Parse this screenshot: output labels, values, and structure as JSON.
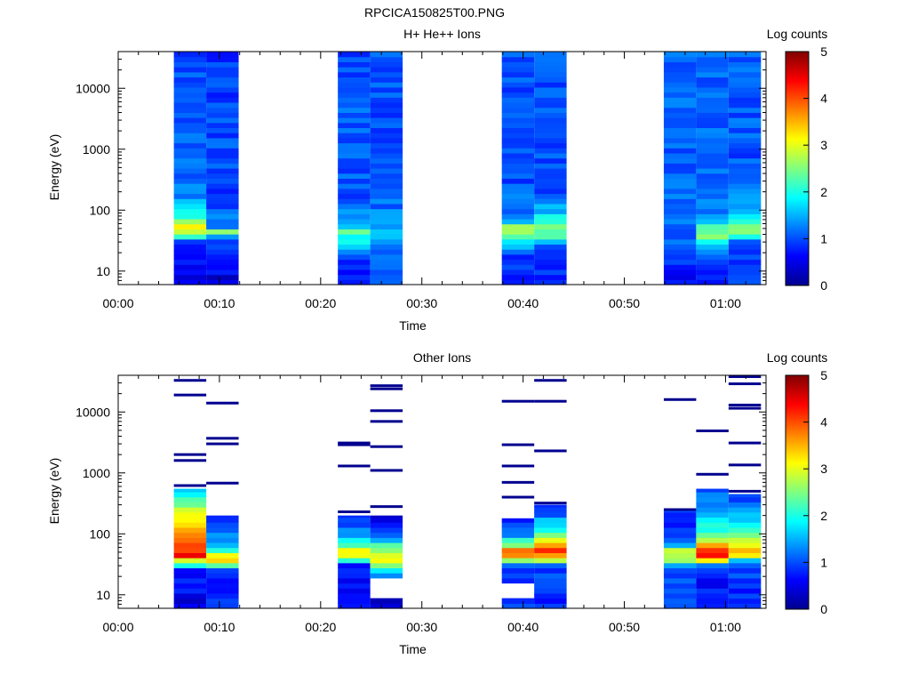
{
  "figure_title": "RPCICA150825T00.PNG",
  "chart_data": [
    {
      "type": "heatmap",
      "title": "H+ He++ Ions",
      "xlabel": "Time",
      "ylabel": "Energy (eV)",
      "y_scale": "log",
      "ylim": [
        6,
        40000
      ],
      "x_unit": "minutes",
      "xlim": [
        0,
        64
      ],
      "x_ticks": [
        {
          "value": 0,
          "label": "00:00"
        },
        {
          "value": 10,
          "label": "00:10"
        },
        {
          "value": 20,
          "label": "00:20"
        },
        {
          "value": 30,
          "label": "00:30"
        },
        {
          "value": 40,
          "label": "00:40"
        },
        {
          "value": 50,
          "label": "00:50"
        },
        {
          "value": 60,
          "label": "01:00"
        }
      ],
      "y_ticks": [
        {
          "value": 10,
          "label": "10"
        },
        {
          "value": 100,
          "label": "100"
        },
        {
          "value": 1000,
          "label": "1000"
        },
        {
          "value": 10000,
          "label": "10000"
        }
      ],
      "colorbar": {
        "label": "Log counts",
        "min": 0,
        "max": 5,
        "ticks": [
          "0",
          "1",
          "2",
          "3",
          "4",
          "5"
        ]
      },
      "columns": [
        {
          "x_start": 5.5,
          "x_end": 8.7,
          "profile": [
            [
              6,
              0.5
            ],
            [
              12,
              0.6
            ],
            [
              30,
              0.9
            ],
            [
              40,
              2.6
            ],
            [
              60,
              3.2
            ],
            [
              80,
              2.0
            ],
            [
              200,
              1.2
            ],
            [
              1000,
              1.1
            ],
            [
              40000,
              1.0
            ]
          ]
        },
        {
          "x_start": 8.7,
          "x_end": 11.9,
          "profile": [
            [
              6,
              0.4
            ],
            [
              20,
              0.8
            ],
            [
              35,
              1.2
            ],
            [
              45,
              2.5
            ],
            [
              55,
              1.3
            ],
            [
              150,
              0.9
            ],
            [
              1000,
              1.0
            ],
            [
              40000,
              0.9
            ]
          ]
        },
        {
          "x_start": 21.7,
          "x_end": 24.9,
          "profile": [
            [
              6,
              0.6
            ],
            [
              20,
              1.0
            ],
            [
              30,
              1.8
            ],
            [
              45,
              2.3
            ],
            [
              60,
              1.4
            ],
            [
              200,
              1.0
            ],
            [
              1000,
              1.1
            ],
            [
              40000,
              1.0
            ]
          ]
        },
        {
          "x_start": 24.9,
          "x_end": 28.1,
          "profile": [
            [
              6,
              1.0
            ],
            [
              20,
              1.1
            ],
            [
              40,
              1.5
            ],
            [
              60,
              1.3
            ],
            [
              300,
              1.0
            ],
            [
              40000,
              1.0
            ]
          ]
        },
        {
          "x_start": 37.9,
          "x_end": 41.1,
          "profile": [
            [
              6,
              0.6
            ],
            [
              20,
              1.0
            ],
            [
              40,
              2.4
            ],
            [
              55,
              2.6
            ],
            [
              70,
              1.3
            ],
            [
              300,
              1.0
            ],
            [
              40000,
              1.0
            ]
          ]
        },
        {
          "x_start": 41.1,
          "x_end": 44.3,
          "profile": [
            [
              6,
              0.7
            ],
            [
              25,
              1.1
            ],
            [
              40,
              2.6
            ],
            [
              60,
              2.2
            ],
            [
              90,
              1.6
            ],
            [
              200,
              1.0
            ],
            [
              40000,
              1.0
            ]
          ]
        },
        {
          "x_start": 53.9,
          "x_end": 57.1,
          "profile": [
            [
              6,
              0.6
            ],
            [
              20,
              1.0
            ],
            [
              60,
              1.2
            ],
            [
              400,
              1.1
            ],
            [
              40000,
              1.1
            ]
          ]
        },
        {
          "x_start": 57.1,
          "x_end": 60.3,
          "profile": [
            [
              6,
              0.5
            ],
            [
              25,
              1.3
            ],
            [
              40,
              2.6
            ],
            [
              55,
              2.3
            ],
            [
              80,
              1.2
            ],
            [
              500,
              1.1
            ],
            [
              40000,
              1.1
            ]
          ]
        },
        {
          "x_start": 60.3,
          "x_end": 63.5,
          "profile": [
            [
              6,
              0.9
            ],
            [
              30,
              1.0
            ],
            [
              45,
              2.7
            ],
            [
              60,
              2.3
            ],
            [
              90,
              1.6
            ],
            [
              300,
              1.0
            ],
            [
              40000,
              1.1
            ]
          ]
        }
      ]
    },
    {
      "type": "heatmap",
      "title": "Other Ions",
      "xlabel": "Time",
      "ylabel": "Energy (eV)",
      "y_scale": "log",
      "ylim": [
        6,
        40000
      ],
      "x_unit": "minutes",
      "xlim": [
        0,
        64
      ],
      "x_ticks": [
        {
          "value": 0,
          "label": "00:00"
        },
        {
          "value": 10,
          "label": "00:10"
        },
        {
          "value": 20,
          "label": "00:20"
        },
        {
          "value": 30,
          "label": "00:30"
        },
        {
          "value": 40,
          "label": "00:40"
        },
        {
          "value": 50,
          "label": "00:50"
        },
        {
          "value": 60,
          "label": "01:00"
        }
      ],
      "y_ticks": [
        {
          "value": 10,
          "label": "10"
        },
        {
          "value": 100,
          "label": "100"
        },
        {
          "value": 1000,
          "label": "1000"
        },
        {
          "value": 10000,
          "label": "10000"
        }
      ],
      "colorbar": {
        "label": "Log counts",
        "min": 0,
        "max": 5,
        "ticks": [
          "0",
          "1",
          "2",
          "3",
          "4",
          "5"
        ]
      },
      "columns": [
        {
          "x_start": 5.5,
          "x_end": 8.7,
          "fill_top": 550,
          "profile": [
            [
              6,
              0.5
            ],
            [
              25,
              0.8
            ],
            [
              32,
              2.2
            ],
            [
              45,
              4.4
            ],
            [
              60,
              4.0
            ],
            [
              100,
              3.5
            ],
            [
              200,
              3.0
            ],
            [
              400,
              2.1
            ],
            [
              550,
              1.4
            ]
          ],
          "lines": [
            33000,
            19000,
            2000,
            1600,
            620
          ]
        },
        {
          "x_start": 8.7,
          "x_end": 11.9,
          "fill_top": 200,
          "profile": [
            [
              6,
              0.8
            ],
            [
              25,
              0.9
            ],
            [
              30,
              2.3
            ],
            [
              40,
              3.5
            ],
            [
              55,
              2.0
            ],
            [
              90,
              1.2
            ],
            [
              200,
              1.0
            ]
          ],
          "lines": [
            14000,
            3700,
            3000,
            680
          ]
        },
        {
          "x_start": 21.7,
          "x_end": 24.9,
          "fill_top": 200,
          "profile": [
            [
              6,
              0.6
            ],
            [
              30,
              0.7
            ],
            [
              38,
              2.2
            ],
            [
              50,
              3.4
            ],
            [
              70,
              2.0
            ],
            [
              120,
              1.2
            ],
            [
              200,
              0.9
            ]
          ],
          "lines": [
            3100,
            2900,
            1300,
            230
          ]
        },
        {
          "x_start": 24.9,
          "x_end": 28.1,
          "fill_top": 200,
          "profile": [
            [
              9,
              0.3
            ],
            [
              20,
              1.0
            ],
            [
              30,
              2.5
            ],
            [
              40,
              3.4
            ],
            [
              60,
              2.4
            ],
            [
              100,
              0.8
            ],
            [
              200,
              0.5
            ]
          ],
          "holes": [
            [
              9,
              20
            ]
          ],
          "lines": [
            27000,
            24000,
            10500,
            7000,
            2700,
            1100,
            280
          ]
        },
        {
          "x_start": 37.9,
          "x_end": 41.1,
          "fill_top": 180,
          "profile": [
            [
              6,
              0.9
            ],
            [
              30,
              1.0
            ],
            [
              38,
              2.8
            ],
            [
              50,
              4.2
            ],
            [
              70,
              2.3
            ],
            [
              110,
              1.0
            ],
            [
              180,
              0.8
            ]
          ],
          "holes": [
            [
              9,
              15
            ]
          ],
          "lines": [
            15000,
            2900,
            1300,
            700,
            400
          ]
        },
        {
          "x_start": 41.1,
          "x_end": 44.3,
          "fill_top": 300,
          "profile": [
            [
              6,
              0.8
            ],
            [
              30,
              1.0
            ],
            [
              38,
              2.8
            ],
            [
              50,
              4.5
            ],
            [
              70,
              3.5
            ],
            [
              110,
              2.2
            ],
            [
              200,
              1.2
            ],
            [
              300,
              0.8
            ]
          ],
          "lines": [
            33000,
            15000,
            2300,
            320
          ]
        },
        {
          "x_start": 53.9,
          "x_end": 57.1,
          "fill_top": 250,
          "profile": [
            [
              6,
              0.9
            ],
            [
              25,
              1.0
            ],
            [
              32,
              1.7
            ],
            [
              40,
              3.0
            ],
            [
              55,
              2.8
            ],
            [
              70,
              1.0
            ],
            [
              250,
              0.8
            ]
          ],
          "lines": [
            16000,
            250
          ]
        },
        {
          "x_start": 57.1,
          "x_end": 60.3,
          "fill_top": 550,
          "profile": [
            [
              6,
              0.6
            ],
            [
              30,
              0.8
            ],
            [
              38,
              3.5
            ],
            [
              45,
              4.5
            ],
            [
              60,
              3.7
            ],
            [
              90,
              2.5
            ],
            [
              200,
              1.5
            ],
            [
              550,
              1.0
            ]
          ],
          "lines": [
            4900,
            950
          ]
        },
        {
          "x_start": 60.3,
          "x_end": 63.5,
          "fill_top": 450,
          "profile": [
            [
              6,
              0.7
            ],
            [
              35,
              1.0
            ],
            [
              42,
              3.2
            ],
            [
              55,
              3.7
            ],
            [
              80,
              2.7
            ],
            [
              150,
              1.8
            ],
            [
              300,
              1.1
            ],
            [
              450,
              0.9
            ]
          ],
          "lines": [
            38000,
            29000,
            13000,
            11500,
            3100,
            1350,
            500
          ]
        }
      ]
    }
  ]
}
